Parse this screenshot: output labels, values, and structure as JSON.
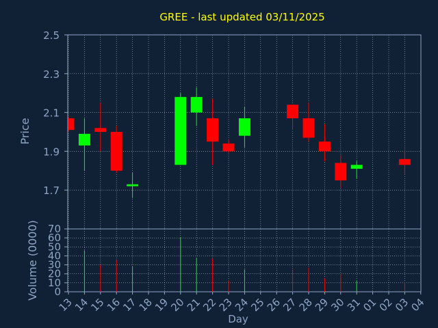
{
  "title": "GREE - last updated 03/11/2025",
  "colors": {
    "background": "#102035",
    "title": "#ffff00",
    "axis": "#8fa6c6",
    "up": "#00ff00",
    "down": "#ff0000",
    "grid": "#ffffff"
  },
  "chart_data": [
    {
      "type": "candlestick",
      "ylabel": "Price",
      "ylim": [
        1.5,
        2.5
      ],
      "yticks": [
        "1.7",
        "1.9",
        "2.1",
        "2.3",
        "2.5"
      ],
      "grid": true,
      "candles": [
        {
          "day": "13",
          "open": 2.07,
          "close": 2.01,
          "high": 2.08,
          "low": 2.0
        },
        {
          "day": "14",
          "open": 1.93,
          "close": 1.99,
          "high": 2.07,
          "low": 1.8
        },
        {
          "day": "15",
          "open": 2.02,
          "close": 2.0,
          "high": 2.15,
          "low": 1.9
        },
        {
          "day": "16",
          "open": 2.0,
          "close": 1.8,
          "high": 2.03,
          "low": 1.79
        },
        {
          "day": "17",
          "open": 1.72,
          "close": 1.73,
          "high": 1.79,
          "low": 1.66
        },
        {
          "day": "20",
          "open": 1.83,
          "close": 2.18,
          "high": 2.2,
          "low": 1.83
        },
        {
          "day": "21",
          "open": 2.1,
          "close": 2.18,
          "high": 2.23,
          "low": 2.03
        },
        {
          "day": "22",
          "open": 2.07,
          "close": 1.95,
          "high": 2.17,
          "low": 1.83
        },
        {
          "day": "23",
          "open": 1.94,
          "close": 1.9,
          "high": 1.96,
          "low": 1.89
        },
        {
          "day": "24",
          "open": 1.98,
          "close": 2.07,
          "high": 2.13,
          "low": 1.92
        },
        {
          "day": "27",
          "open": 2.14,
          "close": 2.07,
          "high": 2.14,
          "low": 2.01
        },
        {
          "day": "28",
          "open": 2.07,
          "close": 1.97,
          "high": 2.15,
          "low": 1.95
        },
        {
          "day": "29",
          "open": 1.95,
          "close": 1.9,
          "high": 2.04,
          "low": 1.85
        },
        {
          "day": "30",
          "open": 1.84,
          "close": 1.75,
          "high": 1.88,
          "low": 1.71
        },
        {
          "day": "31",
          "open": 1.81,
          "close": 1.83,
          "high": 1.85,
          "low": 1.76
        },
        {
          "day": "03",
          "open": 1.86,
          "close": 1.83,
          "high": 1.9,
          "low": 1.78
        }
      ]
    },
    {
      "type": "bar",
      "ylabel": "Volume (0000)",
      "xlabel": "Day",
      "ylim": [
        0,
        70
      ],
      "yticks": [
        "0",
        "10",
        "20",
        "30",
        "40",
        "50",
        "60",
        "70"
      ],
      "categories": [
        "13",
        "14",
        "15",
        "16",
        "17",
        "18",
        "19",
        "20",
        "21",
        "22",
        "23",
        "24",
        "25",
        "26",
        "27",
        "28",
        "29",
        "30",
        "31",
        "01",
        "02",
        "03",
        "04"
      ],
      "values": [
        0,
        46,
        30,
        35,
        28,
        0,
        0,
        61,
        38,
        37,
        13,
        25,
        0,
        0,
        25,
        27,
        15,
        20,
        12,
        0,
        0,
        11,
        0
      ],
      "direction": [
        "",
        "up",
        "down",
        "down",
        "up",
        "",
        "",
        "up",
        "up",
        "down",
        "down",
        "up",
        "",
        "",
        "down",
        "down",
        "down",
        "down",
        "up",
        "",
        "",
        "down",
        ""
      ],
      "grid": true
    }
  ]
}
